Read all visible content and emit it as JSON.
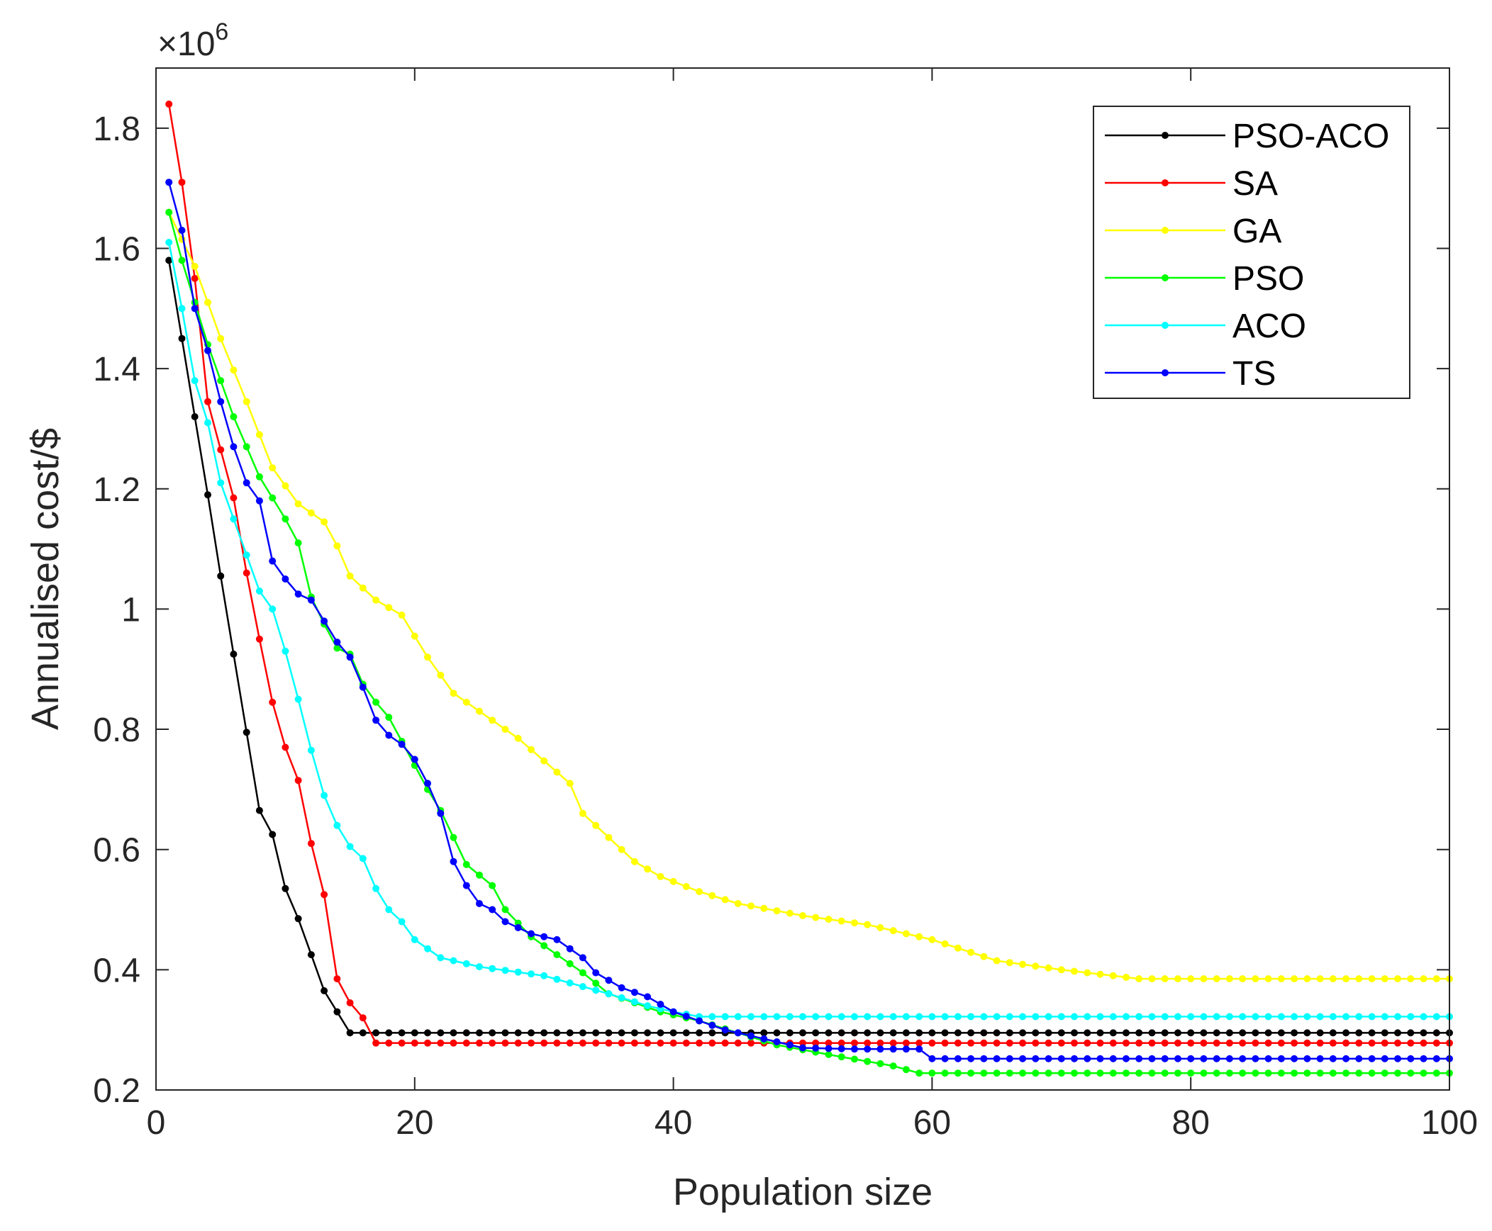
{
  "chart_data": {
    "type": "line",
    "title": "",
    "xlabel": "Population size",
    "ylabel": "Annualised cost/$",
    "xlim": [
      0,
      100
    ],
    "ylim": [
      0.2,
      1.9
    ],
    "y_multiplier_label": "×10",
    "y_multiplier_exponent": "6",
    "grid": false,
    "legend_position": "top-right",
    "x_ticks": [
      0,
      20,
      40,
      60,
      80,
      100
    ],
    "x_tick_labels": [
      "0",
      "20",
      "40",
      "60",
      "80",
      "100"
    ],
    "y_ticks": [
      0.2,
      0.4,
      0.6,
      0.8,
      1.0,
      1.2,
      1.4,
      1.6,
      1.8
    ],
    "y_tick_labels": [
      "0.2",
      "0.4",
      "0.6",
      "0.8",
      "1",
      "1.2",
      "1.4",
      "1.6",
      "1.8"
    ],
    "x_start": 1,
    "x_step": 1,
    "series": [
      {
        "name": "PSO-ACO",
        "color": "#000000",
        "keypoints": [
          [
            1,
            1.58
          ],
          [
            2,
            1.45
          ],
          [
            3,
            1.32
          ],
          [
            4,
            1.19
          ],
          [
            5,
            1.055
          ],
          [
            6,
            0.925
          ],
          [
            7,
            0.795
          ],
          [
            8,
            0.665
          ],
          [
            9,
            0.625
          ],
          [
            10,
            0.535
          ],
          [
            11,
            0.485
          ],
          [
            12,
            0.425
          ],
          [
            13,
            0.365
          ],
          [
            14,
            0.33
          ],
          [
            15,
            0.295
          ],
          [
            100,
            0.295
          ]
        ]
      },
      {
        "name": "SA",
        "color": "#ff0000",
        "keypoints": [
          [
            1,
            1.84
          ],
          [
            2,
            1.71
          ],
          [
            3,
            1.55
          ],
          [
            4,
            1.345
          ],
          [
            5,
            1.265
          ],
          [
            6,
            1.185
          ],
          [
            7,
            1.06
          ],
          [
            8,
            0.95
          ],
          [
            9,
            0.845
          ],
          [
            10,
            0.77
          ],
          [
            11,
            0.715
          ],
          [
            12,
            0.61
          ],
          [
            13,
            0.525
          ],
          [
            14,
            0.385
          ],
          [
            15,
            0.345
          ],
          [
            16,
            0.32
          ],
          [
            17,
            0.278
          ],
          [
            100,
            0.278
          ]
        ]
      },
      {
        "name": "GA",
        "color": "#ffff00",
        "keypoints": [
          [
            1,
            1.66
          ],
          [
            3,
            1.57
          ],
          [
            5,
            1.45
          ],
          [
            7,
            1.345
          ],
          [
            9,
            1.235
          ],
          [
            11,
            1.175
          ],
          [
            13,
            1.145
          ],
          [
            14,
            1.105
          ],
          [
            15,
            1.055
          ],
          [
            17,
            1.015
          ],
          [
            19,
            0.99
          ],
          [
            21,
            0.92
          ],
          [
            23,
            0.86
          ],
          [
            25,
            0.83
          ],
          [
            28,
            0.785
          ],
          [
            32,
            0.71
          ],
          [
            33,
            0.66
          ],
          [
            35,
            0.62
          ],
          [
            37,
            0.58
          ],
          [
            39,
            0.555
          ],
          [
            42,
            0.53
          ],
          [
            45,
            0.51
          ],
          [
            50,
            0.49
          ],
          [
            55,
            0.475
          ],
          [
            60,
            0.45
          ],
          [
            65,
            0.415
          ],
          [
            70,
            0.4
          ],
          [
            76,
            0.385
          ],
          [
            100,
            0.385
          ]
        ]
      },
      {
        "name": "PSO",
        "color": "#00ff00",
        "keypoints": [
          [
            1,
            1.66
          ],
          [
            2,
            1.58
          ],
          [
            4,
            1.44
          ],
          [
            6,
            1.32
          ],
          [
            8,
            1.22
          ],
          [
            10,
            1.15
          ],
          [
            11,
            1.11
          ],
          [
            12,
            1.02
          ],
          [
            13,
            0.975
          ],
          [
            14,
            0.935
          ],
          [
            15,
            0.925
          ],
          [
            16,
            0.875
          ],
          [
            17,
            0.845
          ],
          [
            18,
            0.82
          ],
          [
            19,
            0.78
          ],
          [
            20,
            0.74
          ],
          [
            21,
            0.7
          ],
          [
            22,
            0.665
          ],
          [
            23,
            0.62
          ],
          [
            24,
            0.575
          ],
          [
            26,
            0.54
          ],
          [
            27,
            0.5
          ],
          [
            29,
            0.455
          ],
          [
            31,
            0.425
          ],
          [
            33,
            0.395
          ],
          [
            35,
            0.36
          ],
          [
            37,
            0.345
          ],
          [
            39,
            0.33
          ],
          [
            42,
            0.315
          ],
          [
            45,
            0.295
          ],
          [
            48,
            0.275
          ],
          [
            53,
            0.255
          ],
          [
            57,
            0.24
          ],
          [
            59,
            0.228
          ],
          [
            100,
            0.228
          ]
        ]
      },
      {
        "name": "ACO",
        "color": "#00ffff",
        "keypoints": [
          [
            1,
            1.61
          ],
          [
            2,
            1.5
          ],
          [
            3,
            1.38
          ],
          [
            4,
            1.31
          ],
          [
            5,
            1.21
          ],
          [
            6,
            1.15
          ],
          [
            7,
            1.09
          ],
          [
            8,
            1.03
          ],
          [
            9,
            1.0
          ],
          [
            10,
            0.93
          ],
          [
            11,
            0.85
          ],
          [
            12,
            0.765
          ],
          [
            13,
            0.69
          ],
          [
            14,
            0.64
          ],
          [
            15,
            0.605
          ],
          [
            16,
            0.585
          ],
          [
            17,
            0.535
          ],
          [
            18,
            0.5
          ],
          [
            19,
            0.48
          ],
          [
            20,
            0.45
          ],
          [
            22,
            0.42
          ],
          [
            25,
            0.405
          ],
          [
            30,
            0.39
          ],
          [
            35,
            0.36
          ],
          [
            38,
            0.34
          ],
          [
            40,
            0.33
          ],
          [
            42,
            0.322
          ],
          [
            100,
            0.322
          ]
        ]
      },
      {
        "name": "TS",
        "color": "#0000ff",
        "keypoints": [
          [
            1,
            1.71
          ],
          [
            2,
            1.63
          ],
          [
            3,
            1.5
          ],
          [
            4,
            1.43
          ],
          [
            5,
            1.345
          ],
          [
            6,
            1.27
          ],
          [
            7,
            1.21
          ],
          [
            8,
            1.18
          ],
          [
            9,
            1.08
          ],
          [
            10,
            1.05
          ],
          [
            11,
            1.025
          ],
          [
            12,
            1.015
          ],
          [
            13,
            0.98
          ],
          [
            14,
            0.945
          ],
          [
            15,
            0.92
          ],
          [
            16,
            0.87
          ],
          [
            17,
            0.815
          ],
          [
            18,
            0.79
          ],
          [
            19,
            0.775
          ],
          [
            20,
            0.75
          ],
          [
            21,
            0.71
          ],
          [
            22,
            0.66
          ],
          [
            23,
            0.58
          ],
          [
            24,
            0.54
          ],
          [
            25,
            0.51
          ],
          [
            26,
            0.5
          ],
          [
            27,
            0.48
          ],
          [
            29,
            0.46
          ],
          [
            31,
            0.45
          ],
          [
            33,
            0.42
          ],
          [
            34,
            0.395
          ],
          [
            36,
            0.37
          ],
          [
            38,
            0.355
          ],
          [
            40,
            0.33
          ],
          [
            42,
            0.315
          ],
          [
            44,
            0.3
          ],
          [
            46,
            0.29
          ],
          [
            48,
            0.28
          ],
          [
            50,
            0.27
          ],
          [
            54,
            0.268
          ],
          [
            59,
            0.268
          ],
          [
            60,
            0.252
          ],
          [
            100,
            0.252
          ]
        ]
      }
    ]
  }
}
